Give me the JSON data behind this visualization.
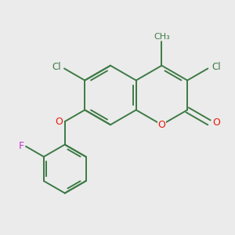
{
  "background_color": "#EBEBEB",
  "bond_color": "#3d7a45",
  "bond_width": 1.4,
  "atom_colors": {
    "Cl": "#3d7a45",
    "O": "#e8190a",
    "F": "#cc33cc",
    "CH3": "#3d7a45"
  },
  "fig_size": [
    3.0,
    3.0
  ],
  "dpi": 100
}
